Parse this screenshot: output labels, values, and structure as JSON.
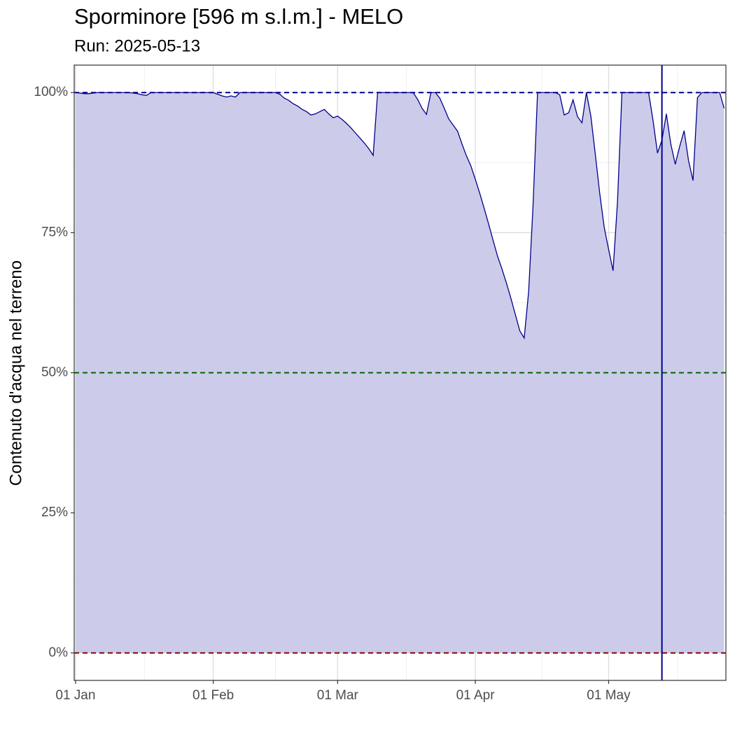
{
  "chart_data": {
    "type": "area",
    "title": "Sporminore [596 m s.l.m.] - MELO",
    "subtitle": "Run: 2025-05-13",
    "ylabel": "Contenuto d'acqua nel terreno",
    "x": [
      0,
      1,
      2,
      3,
      4,
      5,
      6,
      7,
      8,
      9,
      10,
      11,
      12,
      13,
      14,
      15,
      16,
      17,
      18,
      19,
      20,
      21,
      22,
      23,
      24,
      25,
      26,
      27,
      28,
      29,
      30,
      31,
      32,
      33,
      34,
      35,
      36,
      37,
      38,
      39,
      40,
      41,
      42,
      43,
      44,
      45,
      46,
      47,
      48,
      49,
      50,
      51,
      52,
      53,
      54,
      55,
      56,
      57,
      58,
      59,
      60,
      61,
      62,
      63,
      64,
      65,
      66,
      67,
      68,
      69,
      70,
      71,
      72,
      73,
      74,
      75,
      76,
      77,
      78,
      79,
      80,
      81,
      82,
      83,
      84,
      85,
      86,
      87,
      88,
      89,
      90,
      91,
      92,
      93,
      94,
      95,
      96,
      97,
      98,
      99,
      100,
      101,
      102,
      103,
      104,
      105,
      106,
      107,
      108,
      109,
      110,
      111,
      112,
      113,
      114,
      115,
      116,
      117,
      118,
      119,
      120,
      121,
      122,
      123,
      124,
      125,
      126,
      127,
      128,
      129,
      130,
      131,
      132,
      133,
      134,
      135,
      136,
      137,
      138,
      139,
      140,
      141,
      142,
      143,
      144,
      145,
      146
    ],
    "series": [
      {
        "color": "#00008b",
        "fill": "#ccccea",
        "values": [
          100,
          99.9,
          99.8,
          99.8,
          99.9,
          100,
          100,
          100,
          100,
          100,
          100,
          100,
          100,
          99.9,
          99.8,
          99.6,
          99.5,
          100,
          100,
          100,
          100,
          100,
          100,
          100,
          100,
          100,
          100,
          100,
          100,
          100,
          100,
          100,
          99.7,
          99.4,
          99.2,
          99.4,
          99.2,
          100,
          100,
          100,
          100,
          100,
          100,
          100,
          100,
          100,
          99.7,
          99.0,
          98.6,
          98.0,
          97.6,
          97.0,
          96.6,
          96.0,
          96.2,
          96.6,
          97.0,
          96.2,
          95.5,
          95.8,
          95.2,
          94.5,
          93.7,
          92.8,
          91.9,
          91.0,
          90.0,
          88.8,
          100,
          100,
          100,
          100,
          100,
          100,
          100,
          100,
          100,
          98.8,
          97.2,
          96.1,
          100,
          100,
          99.0,
          97.2,
          95.3,
          94.2,
          93.1,
          90.8,
          88.7,
          86.9,
          84.5,
          82.0,
          79.3,
          76.5,
          73.6,
          70.8,
          68.5,
          66.0,
          63.3,
          60.4,
          57.5,
          56.2,
          64.5,
          80.0,
          100,
          100,
          100,
          100,
          100,
          99.6,
          96.0,
          96.4,
          98.7,
          95.7,
          94.6,
          100,
          95.8,
          89.0,
          82.0,
          76.0,
          72.0,
          68.2,
          80.5,
          100,
          100,
          100,
          100,
          100,
          100,
          100,
          95.0,
          89.2,
          91.5,
          96.2,
          90.8,
          87.2,
          90.4,
          93.2,
          87.8,
          84.3,
          99.1,
          100,
          100,
          100,
          100,
          100,
          97.2
        ]
      }
    ],
    "xlim": [
      -0.3,
      146.4
    ],
    "xticks": [
      {
        "value": 0,
        "label": "01 Jan"
      },
      {
        "value": 31,
        "label": "01 Feb"
      },
      {
        "value": 59,
        "label": "01 Mar"
      },
      {
        "value": 90,
        "label": "01 Apr"
      },
      {
        "value": 120,
        "label": "01 May"
      }
    ],
    "x_minor_ticks": [
      15.5,
      45,
      74.5,
      105,
      135.5
    ],
    "ylim": [
      -4.9,
      104.9
    ],
    "yticks": [
      {
        "value": 0,
        "label": "0%"
      },
      {
        "value": 25,
        "label": "25%"
      },
      {
        "value": 50,
        "label": "50%"
      },
      {
        "value": 75,
        "label": "75%"
      },
      {
        "value": 100,
        "label": "100%"
      }
    ],
    "y_minor_ticks": [
      12.5,
      37.5,
      62.5,
      87.5
    ],
    "grid": true,
    "reference_lines": [
      {
        "value": 100,
        "color": "#00008b"
      },
      {
        "value": 50,
        "color": "#006400"
      },
      {
        "value": 0,
        "color": "#8b0000"
      }
    ],
    "vline": {
      "x": 132,
      "color": "#00008b"
    }
  }
}
